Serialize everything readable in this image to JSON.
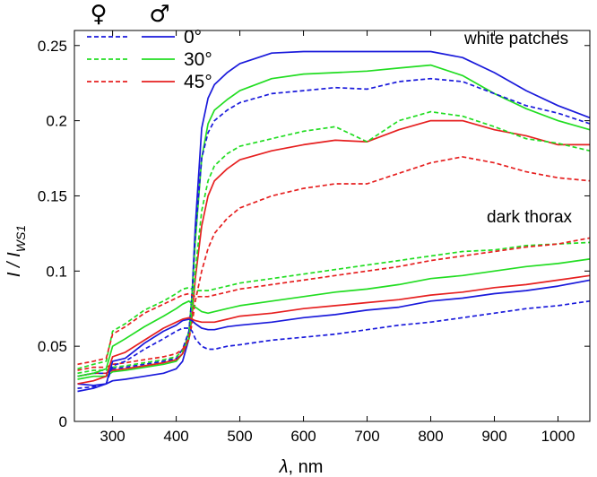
{
  "chart_data": {
    "type": "line",
    "xlabel_symbol": "λ",
    "xlabel_unit": ", nm",
    "ylabel_main": "I / I",
    "ylabel_sub": "WS1",
    "xlim": [
      240,
      1050
    ],
    "ylim": [
      0,
      0.26
    ],
    "x_ticks": [
      300,
      400,
      500,
      600,
      700,
      800,
      900,
      1000
    ],
    "y_ticks": [
      0,
      0.05,
      0.1,
      0.15,
      0.2,
      0.25
    ],
    "y_tick_labels": [
      "0",
      "0.05",
      "0.1",
      "0.15",
      "0.2",
      "0.25"
    ],
    "annotations": {
      "upper": "white patches",
      "lower": "dark thorax"
    },
    "legend": {
      "female_symbol": "♀",
      "male_symbol": "♂",
      "female_style": "dashed",
      "male_style": "solid",
      "entries": [
        {
          "label": "0°",
          "color": "#1a1adb"
        },
        {
          "label": "30°",
          "color": "#22dd22"
        },
        {
          "label": "45°",
          "color": "#e62020"
        }
      ]
    },
    "x": [
      245,
      270,
      290,
      300,
      320,
      350,
      380,
      400,
      410,
      420,
      425,
      430,
      440,
      450,
      460,
      480,
      500,
      550,
      600,
      650,
      700,
      750,
      800,
      850,
      900,
      950,
      1000,
      1050
    ],
    "series": [
      {
        "name": "white patches, male, 0°",
        "color": "#1a1adb",
        "style": "solid",
        "values": [
          0.025,
          0.024,
          0.025,
          0.027,
          0.028,
          0.03,
          0.032,
          0.035,
          0.04,
          0.055,
          0.085,
          0.13,
          0.195,
          0.215,
          0.224,
          0.232,
          0.238,
          0.245,
          0.246,
          0.246,
          0.246,
          0.246,
          0.246,
          0.242,
          0.232,
          0.22,
          0.21,
          0.202
        ]
      },
      {
        "name": "white patches, male, 30°",
        "color": "#22dd22",
        "style": "solid",
        "values": [
          0.028,
          0.03,
          0.03,
          0.033,
          0.034,
          0.036,
          0.038,
          0.04,
          0.045,
          0.06,
          0.085,
          0.12,
          0.175,
          0.198,
          0.207,
          0.214,
          0.22,
          0.228,
          0.231,
          0.232,
          0.233,
          0.235,
          0.237,
          0.23,
          0.218,
          0.208,
          0.2,
          0.194
        ]
      },
      {
        "name": "white patches, male, 45°",
        "color": "#e62020",
        "style": "solid",
        "values": [
          0.03,
          0.032,
          0.032,
          0.034,
          0.035,
          0.037,
          0.039,
          0.041,
          0.045,
          0.055,
          0.07,
          0.095,
          0.13,
          0.15,
          0.16,
          0.168,
          0.174,
          0.18,
          0.184,
          0.187,
          0.186,
          0.194,
          0.2,
          0.2,
          0.194,
          0.19,
          0.184,
          0.184
        ]
      },
      {
        "name": "white patches, female, 0°",
        "color": "#1a1adb",
        "style": "dashed",
        "values": [
          0.03,
          0.032,
          0.032,
          0.035,
          0.036,
          0.038,
          0.04,
          0.042,
          0.048,
          0.06,
          0.085,
          0.125,
          0.175,
          0.192,
          0.2,
          0.207,
          0.212,
          0.218,
          0.22,
          0.222,
          0.221,
          0.226,
          0.228,
          0.226,
          0.218,
          0.21,
          0.205,
          0.198
        ]
      },
      {
        "name": "white patches, female, 30°",
        "color": "#22dd22",
        "style": "dashed",
        "values": [
          0.032,
          0.034,
          0.034,
          0.036,
          0.037,
          0.039,
          0.041,
          0.043,
          0.047,
          0.055,
          0.075,
          0.1,
          0.14,
          0.16,
          0.17,
          0.178,
          0.183,
          0.188,
          0.193,
          0.196,
          0.186,
          0.2,
          0.206,
          0.203,
          0.196,
          0.188,
          0.185,
          0.18
        ]
      },
      {
        "name": "white patches, female, 45°",
        "color": "#e62020",
        "style": "dashed",
        "values": [
          0.034,
          0.036,
          0.036,
          0.038,
          0.039,
          0.041,
          0.043,
          0.045,
          0.048,
          0.055,
          0.065,
          0.08,
          0.1,
          0.115,
          0.125,
          0.135,
          0.142,
          0.15,
          0.155,
          0.158,
          0.158,
          0.165,
          0.172,
          0.176,
          0.172,
          0.166,
          0.162,
          0.16
        ]
      },
      {
        "name": "dark thorax, male, 0°",
        "color": "#1a1adb",
        "style": "solid",
        "values": [
          0.02,
          0.022,
          0.025,
          0.04,
          0.042,
          0.052,
          0.06,
          0.064,
          0.067,
          0.068,
          0.067,
          0.065,
          0.062,
          0.061,
          0.061,
          0.063,
          0.064,
          0.066,
          0.069,
          0.071,
          0.074,
          0.076,
          0.08,
          0.082,
          0.085,
          0.087,
          0.09,
          0.094
        ]
      },
      {
        "name": "dark thorax, male, 30°",
        "color": "#22dd22",
        "style": "solid",
        "values": [
          0.03,
          0.032,
          0.035,
          0.05,
          0.055,
          0.063,
          0.07,
          0.075,
          0.078,
          0.08,
          0.078,
          0.076,
          0.073,
          0.072,
          0.073,
          0.075,
          0.077,
          0.08,
          0.083,
          0.086,
          0.088,
          0.091,
          0.095,
          0.097,
          0.1,
          0.103,
          0.105,
          0.108
        ]
      },
      {
        "name": "dark thorax, male, 45°",
        "color": "#e62020",
        "style": "solid",
        "values": [
          0.025,
          0.027,
          0.03,
          0.043,
          0.046,
          0.054,
          0.062,
          0.066,
          0.068,
          0.069,
          0.068,
          0.067,
          0.066,
          0.066,
          0.066,
          0.068,
          0.07,
          0.072,
          0.075,
          0.077,
          0.079,
          0.081,
          0.084,
          0.086,
          0.089,
          0.091,
          0.094,
          0.097
        ]
      },
      {
        "name": "dark thorax, female, 0°",
        "color": "#1a1adb",
        "style": "dashed",
        "values": [
          0.022,
          0.023,
          0.025,
          0.037,
          0.04,
          0.048,
          0.055,
          0.06,
          0.062,
          0.062,
          0.06,
          0.055,
          0.05,
          0.048,
          0.048,
          0.05,
          0.051,
          0.054,
          0.056,
          0.058,
          0.061,
          0.064,
          0.066,
          0.069,
          0.072,
          0.075,
          0.077,
          0.08
        ]
      },
      {
        "name": "dark thorax, female, 30°",
        "color": "#22dd22",
        "style": "dashed",
        "values": [
          0.035,
          0.038,
          0.04,
          0.06,
          0.065,
          0.074,
          0.08,
          0.085,
          0.088,
          0.089,
          0.088,
          0.087,
          0.087,
          0.087,
          0.088,
          0.09,
          0.092,
          0.095,
          0.098,
          0.101,
          0.104,
          0.107,
          0.11,
          0.113,
          0.114,
          0.117,
          0.118,
          0.119
        ]
      },
      {
        "name": "dark thorax, female, 45°",
        "color": "#e62020",
        "style": "dashed",
        "values": [
          0.038,
          0.04,
          0.042,
          0.058,
          0.063,
          0.072,
          0.078,
          0.082,
          0.084,
          0.085,
          0.084,
          0.083,
          0.083,
          0.083,
          0.084,
          0.086,
          0.088,
          0.091,
          0.094,
          0.097,
          0.1,
          0.103,
          0.107,
          0.11,
          0.113,
          0.116,
          0.118,
          0.122
        ]
      }
    ]
  }
}
